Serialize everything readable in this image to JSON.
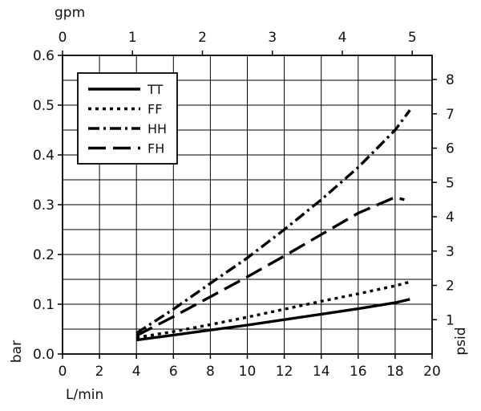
{
  "chart_data": {
    "type": "line",
    "x": {
      "label": "L/min",
      "range": [
        0,
        20
      ],
      "ticks": [
        "0",
        "2",
        "4",
        "6",
        "8",
        "10",
        "12",
        "14",
        "16",
        "18",
        "20"
      ]
    },
    "x_top": {
      "label": "gpm",
      "range": [
        0,
        5.2834
      ],
      "ticks": [
        "0",
        "1",
        "2",
        "3",
        "4",
        "5"
      ]
    },
    "y": {
      "label": "bar",
      "range": [
        0,
        0.6
      ],
      "ticks": [
        "0.0",
        "0.1",
        "0.2",
        "0.3",
        "0.4",
        "0.5",
        "0.6"
      ]
    },
    "y_right": {
      "label": "psid",
      "range": [
        0,
        8.7023
      ],
      "ticks": [
        "1",
        "2",
        "3",
        "4",
        "5",
        "6",
        "7",
        "8"
      ]
    },
    "grid": true,
    "legend_position": "top-left",
    "series": [
      {
        "name": "TT",
        "style": "solid",
        "x": [
          4,
          6,
          8,
          10,
          12,
          14,
          16,
          18,
          18.8
        ],
        "y": [
          0.028,
          0.038,
          0.048,
          0.058,
          0.069,
          0.08,
          0.091,
          0.103,
          0.11
        ]
      },
      {
        "name": "FF",
        "style": "dotted",
        "x": [
          4,
          6,
          8,
          10,
          12,
          14,
          16,
          18,
          18.8
        ],
        "y": [
          0.033,
          0.045,
          0.059,
          0.074,
          0.09,
          0.106,
          0.121,
          0.137,
          0.145
        ]
      },
      {
        "name": "HH",
        "style": "dashdot",
        "x": [
          4,
          6,
          8,
          10,
          12,
          14,
          16,
          18,
          18.8
        ],
        "y": [
          0.042,
          0.09,
          0.142,
          0.193,
          0.25,
          0.31,
          0.375,
          0.45,
          0.49
        ]
      },
      {
        "name": "FH",
        "style": "dashed",
        "x": [
          4,
          6,
          8,
          10,
          12,
          14,
          16,
          18,
          18.5
        ],
        "y": [
          0.037,
          0.075,
          0.115,
          0.155,
          0.197,
          0.24,
          0.283,
          0.315,
          0.31
        ]
      }
    ]
  }
}
